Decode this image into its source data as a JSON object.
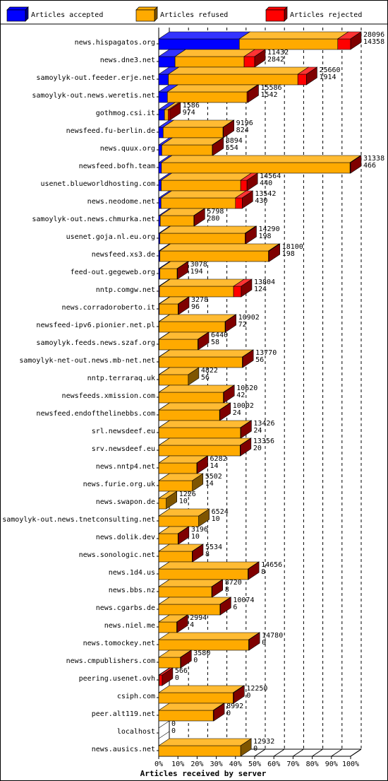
{
  "chart_data": {
    "type": "bar",
    "orientation": "horizontal",
    "stacked": true,
    "style": "3d",
    "xlabel": "Articles received by server",
    "xtick_labels": [
      "0%",
      "10%",
      "20%",
      "30%",
      "40%",
      "50%",
      "60%",
      "70%",
      "80%",
      "90%",
      "100%"
    ],
    "xlim": [
      0,
      100
    ],
    "grid": "vertical dashed",
    "legend_position": "top",
    "legend": [
      {
        "name": "Articles accepted",
        "color": "#0000ff"
      },
      {
        "name": "Articles refused",
        "color": "#ffaa00"
      },
      {
        "name": "Articles rejected",
        "color": "#ff0000"
      }
    ],
    "bars": [
      {
        "server": "news.hispagatos.org",
        "total": 28096,
        "second": 14358,
        "accepted_pct": 42,
        "refused_pct": 51.3,
        "rejected_pct": 6.7
      },
      {
        "server": "news.dne3.net",
        "total": 11432,
        "second": 2842,
        "accepted_pct": 8.5,
        "refused_pct": 36,
        "rejected_pct": 5.5
      },
      {
        "server": "samoylyk-out.feeder.erje.net",
        "total": 25660,
        "second": 1914,
        "accepted_pct": 5,
        "refused_pct": 67.5,
        "rejected_pct": 4.5
      },
      {
        "server": "samoylyk-out.news.weretis.net",
        "total": 15586,
        "second": 1542,
        "accepted_pct": 4.5,
        "refused_pct": 41.5,
        "rejected_pct": 0.5
      },
      {
        "server": "gothmog.csi.it",
        "total": 1586,
        "second": 974,
        "accepted_pct": 3,
        "refused_pct": 2,
        "rejected_pct": 0.8
      },
      {
        "server": "newsfeed.fu-berlin.de",
        "total": 9196,
        "second": 824,
        "accepted_pct": 2.3,
        "refused_pct": 31.2,
        "rejected_pct": 0.2
      },
      {
        "server": "news.quux.org",
        "total": 8894,
        "second": 554,
        "accepted_pct": 1.6,
        "refused_pct": 26.3,
        "rejected_pct": 0.3
      },
      {
        "server": "newsfeed.bofh.team",
        "total": 31338,
        "second": 466,
        "accepted_pct": 1.4,
        "refused_pct": 98.3,
        "rejected_pct": 0.3
      },
      {
        "server": "usenet.blueworldhosting.com",
        "total": 14564,
        "second": 440,
        "accepted_pct": 1.3,
        "refused_pct": 41.4,
        "rejected_pct": 3.3
      },
      {
        "server": "news.neodome.net",
        "total": 13542,
        "second": 430,
        "accepted_pct": 1.2,
        "refused_pct": 38.8,
        "rejected_pct": 3.5
      },
      {
        "server": "samoylyk-out.news.chmurka.net",
        "total": 5798,
        "second": 280,
        "accepted_pct": 0.8,
        "refused_pct": 17.5,
        "rejected_pct": 0.2
      },
      {
        "server": "usenet.goja.nl.eu.org",
        "total": 14290,
        "second": 198,
        "accepted_pct": 0.6,
        "refused_pct": 44.4,
        "rejected_pct": 0.4
      },
      {
        "server": "newsfeed.xs3.de",
        "total": 18100,
        "second": 198,
        "accepted_pct": 0.6,
        "refused_pct": 56.6,
        "rejected_pct": 0.4
      },
      {
        "server": "feed-out.gegeweb.org",
        "total": 3078,
        "second": 194,
        "accepted_pct": 0.6,
        "refused_pct": 9,
        "rejected_pct": 0.2
      },
      {
        "server": "nntp.comgw.net",
        "total": 13804,
        "second": 124,
        "accepted_pct": 0.4,
        "refused_pct": 38.6,
        "rejected_pct": 4
      },
      {
        "server": "news.corradoroberto.it",
        "total": 3278,
        "second": 96,
        "accepted_pct": 0.3,
        "refused_pct": 9.8,
        "rejected_pct": 0.2
      },
      {
        "server": "newsfeed-ipv6.pionier.net.pl",
        "total": 10902,
        "second": 72,
        "accepted_pct": 0.2,
        "refused_pct": 34.4,
        "rejected_pct": 0.2
      },
      {
        "server": "samoylyk.feeds.news.szaf.org",
        "total": 6440,
        "second": 58,
        "accepted_pct": 0.2,
        "refused_pct": 20.2,
        "rejected_pct": 0.2
      },
      {
        "server": "samoylyk-net-out.news.mb-net.net",
        "total": 13770,
        "second": 56,
        "accepted_pct": 0.2,
        "refused_pct": 43.4,
        "rejected_pct": 0.2
      },
      {
        "server": "nntp.terraraq.uk",
        "total": 4822,
        "second": 56,
        "accepted_pct": 0.2,
        "refused_pct": 15.2,
        "rejected_pct": 0
      },
      {
        "server": "newsfeeds.xmission.com",
        "total": 10620,
        "second": 42,
        "accepted_pct": 0.1,
        "refused_pct": 33.6,
        "rejected_pct": 0.2
      },
      {
        "server": "newsfeed.endofthelinebbs.com",
        "total": 10002,
        "second": 24,
        "accepted_pct": 0.1,
        "refused_pct": 31.6,
        "rejected_pct": 0.2
      },
      {
        "server": "srl.newsdeef.eu",
        "total": 13426,
        "second": 24,
        "accepted_pct": 0.1,
        "refused_pct": 42.5,
        "rejected_pct": 0.2
      },
      {
        "server": "srv.newsdeef.eu",
        "total": 13356,
        "second": 20,
        "accepted_pct": 0.1,
        "refused_pct": 42.3,
        "rejected_pct": 0.2
      },
      {
        "server": "news.nntp4.net",
        "total": 6282,
        "second": 14,
        "accepted_pct": 0.05,
        "refused_pct": 19.8,
        "rejected_pct": 0.2
      },
      {
        "server": "news.furie.org.uk",
        "total": 5502,
        "second": 14,
        "accepted_pct": 0.05,
        "refused_pct": 17.5,
        "rejected_pct": 0
      },
      {
        "server": "news.swapon.de",
        "total": 1226,
        "second": 10,
        "accepted_pct": 0.03,
        "refused_pct": 3.9,
        "rejected_pct": 0
      },
      {
        "server": "samoylyk-out.news.tnetconsulting.net",
        "total": 6524,
        "second": 10,
        "accepted_pct": 0.03,
        "refused_pct": 20.8,
        "rejected_pct": 0
      },
      {
        "server": "news.dolik.dev",
        "total": 3196,
        "second": 10,
        "accepted_pct": 0.03,
        "refused_pct": 10,
        "rejected_pct": 0.2
      },
      {
        "server": "news.sonologic.net",
        "total": 5534,
        "second": 8,
        "accepted_pct": 0.03,
        "refused_pct": 17.4,
        "rejected_pct": 0.2
      },
      {
        "server": "news.1d4.us",
        "total": 14656,
        "second": 8,
        "accepted_pct": 0.03,
        "refused_pct": 46.5,
        "rejected_pct": 0.2
      },
      {
        "server": "news.bbs.nz",
        "total": 8720,
        "second": 8,
        "accepted_pct": 0.03,
        "refused_pct": 27.6,
        "rejected_pct": 0.2
      },
      {
        "server": "news.cgarbs.de",
        "total": 10074,
        "second": 6,
        "accepted_pct": 0.02,
        "refused_pct": 31.9,
        "rejected_pct": 0.2
      },
      {
        "server": "news.niel.me",
        "total": 2994,
        "second": 4,
        "accepted_pct": 0.01,
        "refused_pct": 9.4,
        "rejected_pct": 0.2
      },
      {
        "server": "news.tomockey.net",
        "total": 14780,
        "second": 0,
        "accepted_pct": 0,
        "refused_pct": 46.9,
        "rejected_pct": 0.2
      },
      {
        "server": "news.cmpublishers.com",
        "total": 3580,
        "second": 0,
        "accepted_pct": 0,
        "refused_pct": 11.3,
        "rejected_pct": 0.2
      },
      {
        "server": "peering.usenet.ovh",
        "total": 566,
        "second": 0,
        "accepted_pct": 0,
        "refused_pct": 0.3,
        "rejected_pct": 1.5
      },
      {
        "server": "csiph.com",
        "total": 12250,
        "second": 0,
        "accepted_pct": 0,
        "refused_pct": 38.8,
        "rejected_pct": 0.3
      },
      {
        "server": "peer.alt119.net",
        "total": 8992,
        "second": 0,
        "accepted_pct": 0,
        "refused_pct": 28.4,
        "rejected_pct": 0.3
      },
      {
        "server": "localhost",
        "total": 0,
        "second": 0,
        "accepted_pct": 0,
        "refused_pct": 0,
        "rejected_pct": 0
      },
      {
        "server": "news.ausics.net",
        "total": 12932,
        "second": 0,
        "accepted_pct": 0,
        "refused_pct": 42.7,
        "rejected_pct": 0
      }
    ]
  }
}
